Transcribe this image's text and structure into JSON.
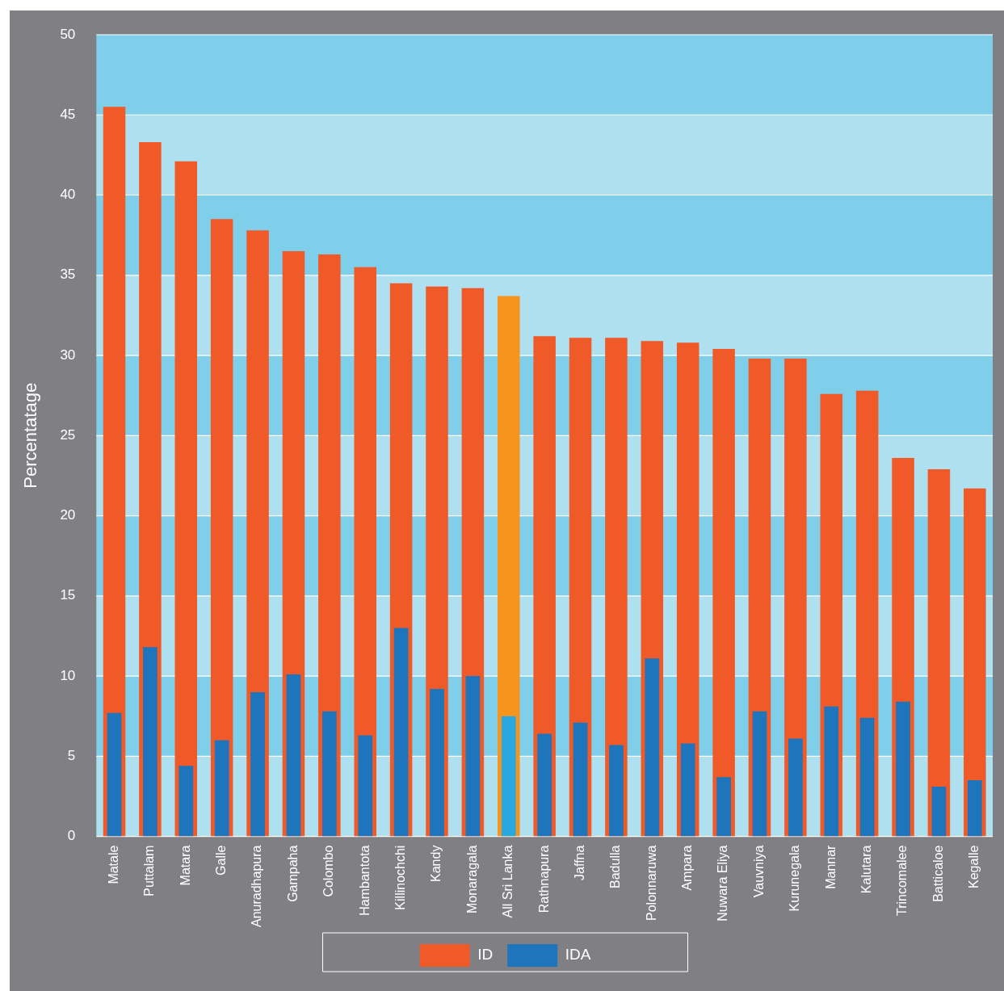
{
  "chart_data": {
    "type": "bar",
    "ylabel": "Percentatage",
    "categories": [
      "Matale",
      "Puttalam",
      "Matara",
      "Galle",
      "Anuradhapura",
      "Gampaha",
      "Colombo",
      "Hambantota",
      "Killinochchi",
      "Kandy",
      "Monaragala",
      "All Sri Lanka",
      "Rathnapura",
      "Jaffna",
      "Badulla",
      "Polonnaruwa",
      "Ampara",
      "Nuwara Eliya",
      "Vauvniya",
      "Kurunegala",
      "Mannar",
      "Kalutara",
      "Trincomalee",
      "Batticaloe",
      "Kegalle"
    ],
    "series": [
      {
        "name": "ID",
        "color": "#f05a28",
        "colors": [
          "#f05a28",
          "#f05a28",
          "#f05a28",
          "#f05a28",
          "#f05a28",
          "#f05a28",
          "#f05a28",
          "#f05a28",
          "#f05a28",
          "#f05a28",
          "#f05a28",
          "#f7941d",
          "#f05a28",
          "#f05a28",
          "#f05a28",
          "#f05a28",
          "#f05a28",
          "#f05a28",
          "#f05a28",
          "#f05a28",
          "#f05a28",
          "#f05a28",
          "#f05a28",
          "#f05a28",
          "#f05a28"
        ],
        "values": [
          45.5,
          43.3,
          42.1,
          38.5,
          37.8,
          36.5,
          36.3,
          35.5,
          34.5,
          34.3,
          34.2,
          33.7,
          31.2,
          31.1,
          31.1,
          30.9,
          30.8,
          30.4,
          29.8,
          29.8,
          27.6,
          27.8,
          23.6,
          22.9,
          21.7
        ]
      },
      {
        "name": "IDA",
        "color": "#1f75bc",
        "colors": [
          "#1f75bc",
          "#1f75bc",
          "#1f75bc",
          "#1f75bc",
          "#1f75bc",
          "#1f75bc",
          "#1f75bc",
          "#1f75bc",
          "#1f75bc",
          "#1f75bc",
          "#1f75bc",
          "#29a8e0",
          "#1f75bc",
          "#1f75bc",
          "#1f75bc",
          "#1f75bc",
          "#1f75bc",
          "#1f75bc",
          "#1f75bc",
          "#1f75bc",
          "#1f75bc",
          "#1f75bc",
          "#1f75bc",
          "#1f75bc",
          "#1f75bc"
        ],
        "values": [
          7.7,
          11.8,
          4.4,
          6.0,
          9.0,
          10.1,
          7.8,
          6.3,
          13.0,
          9.2,
          10.0,
          7.5,
          6.4,
          7.1,
          5.7,
          11.1,
          5.8,
          3.7,
          7.8,
          6.1,
          8.1,
          7.4,
          8.4,
          3.1,
          3.5
        ]
      }
    ],
    "bands": [
      {
        "axis": "y",
        "from": 0,
        "to": 5,
        "color": "#aee0f0"
      },
      {
        "axis": "y",
        "from": 5,
        "to": 10,
        "color": "#7fcfea"
      },
      {
        "axis": "y",
        "from": 10,
        "to": 15,
        "color": "#aee0f0"
      },
      {
        "axis": "y",
        "from": 15,
        "to": 20,
        "color": "#7fcfea"
      },
      {
        "axis": "y",
        "from": 20,
        "to": 25,
        "color": "#aee0f0"
      },
      {
        "axis": "y",
        "from": 25,
        "to": 30,
        "color": "#7fcfea"
      },
      {
        "axis": "y",
        "from": 30,
        "to": 35,
        "color": "#aee0f0"
      },
      {
        "axis": "y",
        "from": 35,
        "to": 40,
        "color": "#7fcfea"
      },
      {
        "axis": "y",
        "from": 40,
        "to": 45,
        "color": "#aee0f0"
      },
      {
        "axis": "y",
        "from": 45,
        "to": 50,
        "color": "#7fcfea"
      }
    ],
    "ylim": [
      0,
      50
    ],
    "yticks": [
      0,
      5,
      10,
      15,
      20,
      25,
      30,
      35,
      40,
      45,
      50
    ],
    "grid": "y",
    "legend": "bottom"
  }
}
